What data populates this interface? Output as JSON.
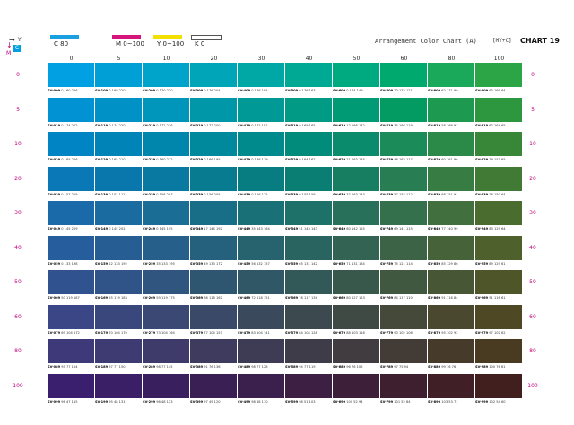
{
  "header": {
    "title": "Arrangement Color Chart (A)",
    "formula": "[MY+C]",
    "chart_number": "CHART 19",
    "axis_y_label": "Y",
    "axis_m_label": "M",
    "corner_badge": "C"
  },
  "legend": [
    {
      "label": "C  80",
      "color": "#1aa0e0"
    },
    {
      "label": "M  0~100",
      "color": "#d6157a"
    },
    {
      "label": "Y  0~100",
      "color": "#f3e000"
    },
    {
      "label": "K  0",
      "color": "#ffffff"
    }
  ],
  "columns": [
    "0",
    "5",
    "10",
    "20",
    "30",
    "40",
    "50",
    "60",
    "80",
    "100"
  ],
  "rows": [
    "0",
    "5",
    "10",
    "20",
    "30",
    "40",
    "50",
    "60",
    "80",
    "100"
  ],
  "cells": [
    [
      {
        "code": "SV-009",
        "rgb": "0 160 226",
        "hex": "#00a0e2"
      },
      {
        "code": "SV-109",
        "rgb": "0 160 220",
        "hex": "#00a0d7"
      },
      {
        "code": "SV-209",
        "rgb": "0 170 220",
        "hex": "#00a3ca"
      },
      {
        "code": "SV-309",
        "rgb": "0 176 204",
        "hex": "#00a6b8"
      },
      {
        "code": "SV-409",
        "rgb": "0 176 185",
        "hex": "#00a8a5"
      },
      {
        "code": "SV-509",
        "rgb": "0 176 163",
        "hex": "#00a993"
      },
      {
        "code": "SV-609",
        "rgb": "0 174 149",
        "hex": "#00aa81"
      },
      {
        "code": "SV-709",
        "rgb": "20 172 121",
        "hex": "#00aa6f"
      },
      {
        "code": "SV-809",
        "rgb": "62 171 99",
        "hex": "#1aa95a"
      },
      {
        "code": "SV-909",
        "rgb": "63 169 64",
        "hex": "#2ba545"
      }
    ],
    [
      {
        "code": "SV-019",
        "rgb": "0 174 222",
        "hex": "#0092d2"
      },
      {
        "code": "SV-119",
        "rgb": "0 174 220",
        "hex": "#0092c6"
      },
      {
        "code": "SV-219",
        "rgb": "0 172 216",
        "hex": "#0095ba"
      },
      {
        "code": "SV-319",
        "rgb": "0 172 200",
        "hex": "#0097a8"
      },
      {
        "code": "SV-419",
        "rgb": "0 172 182",
        "hex": "#009996"
      },
      {
        "code": "SV-519",
        "rgb": "0 169 165",
        "hex": "#009a85"
      },
      {
        "code": "SV-619",
        "rgb": "12 166 142",
        "hex": "#009b74"
      },
      {
        "code": "SV-719",
        "rgb": "35 166 119",
        "hex": "#049b63"
      },
      {
        "code": "SV-819",
        "rgb": "58 166 97",
        "hex": "#1e9a50"
      },
      {
        "code": "SV-919",
        "rgb": "67 164 65",
        "hex": "#2c973e"
      }
    ],
    [
      {
        "code": "SV-029",
        "rgb": "0 165 216",
        "hex": "#0084c4"
      },
      {
        "code": "SV-129",
        "rgb": "0 165 210",
        "hex": "#0084b8"
      },
      {
        "code": "SV-229",
        "rgb": "0 160 212",
        "hex": "#0086ad"
      },
      {
        "code": "SV-329",
        "rgb": "0 166 195",
        "hex": "#00889c"
      },
      {
        "code": "SV-429",
        "rgb": "0 166 179",
        "hex": "#008a8b"
      },
      {
        "code": "SV-529",
        "rgb": "0 164 162",
        "hex": "#008b7b"
      },
      {
        "code": "SV-629",
        "rgb": "21 163 145",
        "hex": "#0a8b6b"
      },
      {
        "code": "SV-729",
        "rgb": "46 162 117",
        "hex": "#1c8b5a"
      },
      {
        "code": "SV-829",
        "rgb": "60 161 96",
        "hex": "#2c8a49"
      },
      {
        "code": "SV-929",
        "rgb": "79 153 65",
        "hex": "#388739"
      }
    ],
    [
      {
        "code": "SV-039",
        "rgb": "0 157 219",
        "hex": "#0a77b7"
      },
      {
        "code": "SV-139",
        "rgb": "0 157 111",
        "hex": "#0a77ac"
      },
      {
        "code": "SV-239",
        "rgb": "0 156 207",
        "hex": "#0979a1"
      },
      {
        "code": "SV-339",
        "rgb": "0 156 205",
        "hex": "#087b91"
      },
      {
        "code": "SV-439",
        "rgb": "0 156 175",
        "hex": "#087d81"
      },
      {
        "code": "SV-539",
        "rgb": "0 155 159",
        "hex": "#0a7e72"
      },
      {
        "code": "SV-639",
        "rgb": "37 163 143",
        "hex": "#187e62"
      },
      {
        "code": "SV-739",
        "rgb": "57 152 112",
        "hex": "#287d53"
      },
      {
        "code": "SV-839",
        "rgb": "68 151 91",
        "hex": "#367c43"
      },
      {
        "code": "SV-939",
        "rgb": "76 150 64",
        "hex": "#417a34"
      }
    ],
    [
      {
        "code": "SV-049",
        "rgb": "0 145 209",
        "hex": "#1a6aaa"
      },
      {
        "code": "SV-149",
        "rgb": "0 145 202",
        "hex": "#1a6ba0"
      },
      {
        "code": "SV-249",
        "rgb": "0 145 195",
        "hex": "#1a6d95"
      },
      {
        "code": "SV-349",
        "rgb": "17 144 192",
        "hex": "#186e86"
      },
      {
        "code": "SV-449",
        "rgb": "35 143 164",
        "hex": "#197077"
      },
      {
        "code": "SV-549",
        "rgb": "51 143 143",
        "hex": "#1e7169"
      },
      {
        "code": "SV-649",
        "rgb": "60 142 125",
        "hex": "#287059"
      },
      {
        "code": "SV-749",
        "rgb": "69 141 115",
        "hex": "#34704b"
      },
      {
        "code": "SV-849",
        "rgb": "77 140 99",
        "hex": "#416f3d"
      },
      {
        "code": "SV-949",
        "rgb": "83 129 64",
        "hex": "#4a6d2f"
      }
    ],
    [
      {
        "code": "SV-059",
        "rgb": "0 133 198",
        "hex": "#265e9d"
      },
      {
        "code": "SV-159",
        "rgb": "22 133 192",
        "hex": "#265e94"
      },
      {
        "code": "SV-259",
        "rgb": "35 133 195",
        "hex": "#26608a"
      },
      {
        "code": "SV-359",
        "rgb": "49 133 172",
        "hex": "#25617c"
      },
      {
        "code": "SV-459",
        "rgb": "56 132 157",
        "hex": "#26636e"
      },
      {
        "code": "SV-559",
        "rgb": "65 131 142",
        "hex": "#2a6461"
      },
      {
        "code": "SV-659",
        "rgb": "71 131 134",
        "hex": "#326353"
      },
      {
        "code": "SV-759",
        "rgb": "75 121 114",
        "hex": "#3c6346"
      },
      {
        "code": "SV-859",
        "rgb": "85 129 86",
        "hex": "#466239"
      },
      {
        "code": "SV-959",
        "rgb": "89 129 61",
        "hex": "#4e602c"
      }
    ],
    [
      {
        "code": "SV-069",
        "rgb": "50 119 187",
        "hex": "#30538f"
      },
      {
        "code": "SV-169",
        "rgb": "55 119 183",
        "hex": "#305487"
      },
      {
        "code": "SV-269",
        "rgb": "59 119 175",
        "hex": "#30557e"
      },
      {
        "code": "SV-369",
        "rgb": "66 118 162",
        "hex": "#2f5671"
      },
      {
        "code": "SV-469",
        "rgb": "72 118 151",
        "hex": "#305765"
      },
      {
        "code": "SV-569",
        "rgb": "76 117 134",
        "hex": "#335858"
      },
      {
        "code": "SV-669",
        "rgb": "80 127 123",
        "hex": "#38584c"
      },
      {
        "code": "SV-769",
        "rgb": "84 117 110",
        "hex": "#405740"
      },
      {
        "code": "SV-869",
        "rgb": "91 116 84",
        "hex": "#475634"
      },
      {
        "code": "SV-969",
        "rgb": "91 116 61",
        "hex": "#4e5528"
      }
    ],
    [
      {
        "code": "SV-079",
        "rgb": "69 104 172",
        "hex": "#3a4685"
      },
      {
        "code": "SV-179",
        "rgb": "70 104 170",
        "hex": "#3a477c"
      },
      {
        "code": "SV-279",
        "rgb": "73 104 164",
        "hex": "#3a4873"
      },
      {
        "code": "SV-379",
        "rgb": "77 104 153",
        "hex": "#3a4967"
      },
      {
        "code": "SV-479",
        "rgb": "83 104 141",
        "hex": "#3a4a5c"
      },
      {
        "code": "SV-579",
        "rgb": "84 104 128",
        "hex": "#3c4a50"
      },
      {
        "code": "SV-679",
        "rgb": "88 103 116",
        "hex": "#404a45"
      },
      {
        "code": "SV-779",
        "rgb": "90 102 106",
        "hex": "#44493a"
      },
      {
        "code": "SV-879",
        "rgb": "95 102 92",
        "hex": "#4a492f"
      },
      {
        "code": "SV-979",
        "rgb": "97 102 62",
        "hex": "#4f4825"
      }
    ],
    [
      {
        "code": "SV-089",
        "rgb": "95 77 154",
        "hex": "#3e3a7a"
      },
      {
        "code": "SV-189",
        "rgb": "97 77 150",
        "hex": "#3e3a72"
      },
      {
        "code": "SV-289",
        "rgb": "98 77 145",
        "hex": "#3e3b6a"
      },
      {
        "code": "SV-389",
        "rgb": "91 76 136",
        "hex": "#3e3b5f"
      },
      {
        "code": "SV-489",
        "rgb": "98 77 128",
        "hex": "#3e3c55"
      },
      {
        "code": "SV-589",
        "rgb": "94 77 119",
        "hex": "#3f3c4a"
      },
      {
        "code": "SV-689",
        "rgb": "96 76 105",
        "hex": "#413c40"
      },
      {
        "code": "SV-789",
        "rgb": "97 75 94",
        "hex": "#433b36"
      },
      {
        "code": "SV-889",
        "rgb": "99 76 76",
        "hex": "#463b2b"
      },
      {
        "code": "SV-989",
        "rgb": "100 76 61",
        "hex": "#493a22"
      }
    ],
    [
      {
        "code": "SV-099",
        "rgb": "96 47 115",
        "hex": "#3a1f6e"
      },
      {
        "code": "SV-199",
        "rgb": "95 48 131",
        "hex": "#3a1f66"
      },
      {
        "code": "SV-299",
        "rgb": "96 48 123",
        "hex": "#3a1f5f"
      },
      {
        "code": "SV-399",
        "rgb": "97 49 120",
        "hex": "#3a1f55"
      },
      {
        "code": "SV-499",
        "rgb": "98 48 110",
        "hex": "#3b1f4c"
      },
      {
        "code": "SV-599",
        "rgb": "98 51 103",
        "hex": "#3c1f43"
      },
      {
        "code": "SV-699",
        "rgb": "100 52 94",
        "hex": "#3d1f39"
      },
      {
        "code": "SV-799",
        "rgb": "101 52 84",
        "hex": "#3e1f30"
      },
      {
        "code": "SV-899",
        "rgb": "103 53 71",
        "hex": "#401f27"
      },
      {
        "code": "SV-999",
        "rgb": "102 54 60",
        "hex": "#411f1f"
      }
    ]
  ]
}
